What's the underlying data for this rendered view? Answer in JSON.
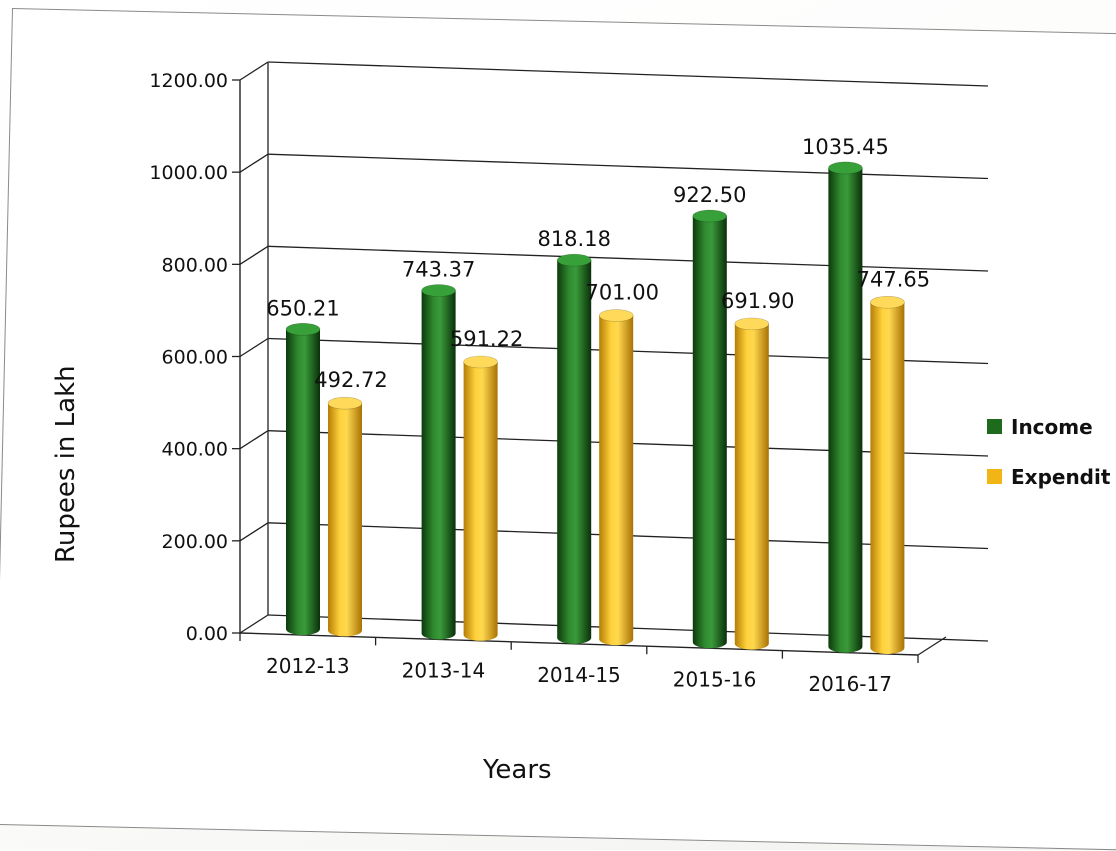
{
  "chart_data": {
    "type": "bar",
    "categories": [
      "2012-13",
      "2013-14",
      "2014-15",
      "2015-16",
      "2016-17"
    ],
    "series": [
      {
        "name": "Income",
        "values": [
          650.21,
          743.37,
          818.18,
          922.5,
          1035.45
        ],
        "color": "#1e6b1e"
      },
      {
        "name": "Expendit",
        "values": [
          492.72,
          591.22,
          701.0,
          691.9,
          747.65
        ],
        "color": "#f2b516"
      }
    ],
    "data_labels": [
      [
        "650.21",
        "743.37",
        "818.18",
        "922.50",
        "1035.45"
      ],
      [
        "492.72",
        "591.22",
        "701.00",
        "691.90",
        "747.65"
      ]
    ],
    "yticks": [
      "0.00",
      "200.00",
      "400.00",
      "600.00",
      "800.00",
      "1000.00",
      "1200.00"
    ],
    "ylim": [
      0,
      1200
    ],
    "xlabel": "Years",
    "ylabel": "Rupees in Lakh",
    "grid": true,
    "legend": "right",
    "style": "3d-cylinder"
  }
}
